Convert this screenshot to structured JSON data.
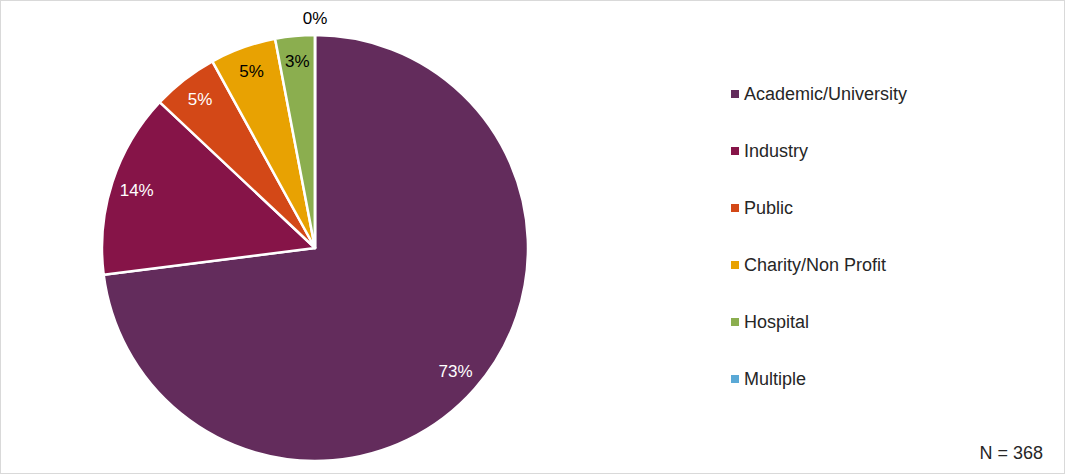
{
  "chart_data": {
    "type": "pie",
    "categories": [
      "Academic/University",
      "Industry",
      "Public",
      "Charity/Non Profit",
      "Hospital",
      "Multiple"
    ],
    "values": [
      73,
      14,
      5,
      5,
      3,
      0
    ],
    "value_labels": [
      "73%",
      "14%",
      "5%",
      "5%",
      "3%",
      "0%"
    ],
    "colors": [
      "#632c5c",
      "#861448",
      "#d34817",
      "#e8a202",
      "#8bae4f",
      "#5aa9d6"
    ],
    "data_labels": true,
    "legend": "right",
    "annotation": "N = 368"
  }
}
